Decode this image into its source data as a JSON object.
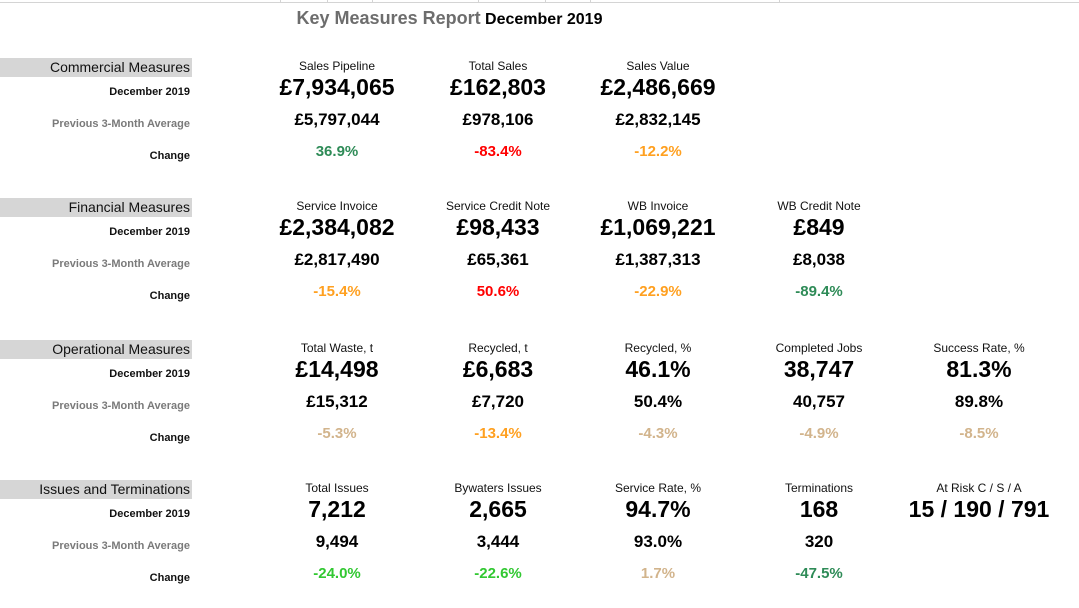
{
  "report": {
    "title": "Key Measures Report",
    "period": "December 2019"
  },
  "row_labels": {
    "current": "December 2019",
    "previous": "Previous 3-Month Average",
    "change": "Change"
  },
  "colors": {
    "header_band": "#d6d6d6",
    "dark_green": "#2e8b57",
    "bright_green": "#32c832",
    "red": "#ff0000",
    "orange": "#ffa020",
    "tan": "#d2b48c"
  },
  "sections": [
    {
      "name": "Commercial Measures",
      "measures": [
        {
          "label": "Sales Pipeline",
          "current": "£7,934,065",
          "previous": "£5,797,044",
          "change": "36.9%",
          "change_color": "#2e8b57"
        },
        {
          "label": "Total Sales",
          "current": "£162,803",
          "previous": "£978,106",
          "change": "-83.4%",
          "change_color": "#ff0000"
        },
        {
          "label": "Sales Value",
          "current": "£2,486,669",
          "previous": "£2,832,145",
          "change": "-12.2%",
          "change_color": "#ffa020"
        }
      ]
    },
    {
      "name": "Financial Measures",
      "measures": [
        {
          "label": "Service Invoice",
          "current": "£2,384,082",
          "previous": "£2,817,490",
          "change": "-15.4%",
          "change_color": "#ffa020"
        },
        {
          "label": "Service Credit Note",
          "current": "£98,433",
          "previous": "£65,361",
          "change": "50.6%",
          "change_color": "#ff0000"
        },
        {
          "label": "WB Invoice",
          "current": "£1,069,221",
          "previous": "£1,387,313",
          "change": "-22.9%",
          "change_color": "#ffa020"
        },
        {
          "label": "WB Credit Note",
          "current": "£849",
          "previous": "£8,038",
          "change": "-89.4%",
          "change_color": "#2e8b57"
        }
      ]
    },
    {
      "name": "Operational Measures",
      "measures": [
        {
          "label": "Total Waste, t",
          "current": "£14,498",
          "previous": "£15,312",
          "change": "-5.3%",
          "change_color": "#d2b48c"
        },
        {
          "label": "Recycled, t",
          "current": "£6,683",
          "previous": "£7,720",
          "change": "-13.4%",
          "change_color": "#ffa020"
        },
        {
          "label": "Recycled, %",
          "current": "46.1%",
          "previous": "50.4%",
          "change": "-4.3%",
          "change_color": "#d2b48c"
        },
        {
          "label": "Completed Jobs",
          "current": "38,747",
          "previous": "40,757",
          "change": "-4.9%",
          "change_color": "#d2b48c"
        },
        {
          "label": "Success Rate, %",
          "current": "81.3%",
          "previous": "89.8%",
          "change": "-8.5%",
          "change_color": "#d2b48c"
        }
      ]
    },
    {
      "name": "Issues and Terminations",
      "measures": [
        {
          "label": "Total Issues",
          "current": "7,212",
          "previous": "9,494",
          "change": "-24.0%",
          "change_color": "#32c832"
        },
        {
          "label": "Bywaters Issues",
          "current": "2,665",
          "previous": "3,444",
          "change": "-22.6%",
          "change_color": "#32c832"
        },
        {
          "label": "Service Rate, %",
          "current": "94.7%",
          "previous": "93.0%",
          "change": "1.7%",
          "change_color": "#d2b48c"
        },
        {
          "label": "Terminations",
          "current": "168",
          "previous": "320",
          "change": "-47.5%",
          "change_color": "#2e8b57"
        },
        {
          "label": "At Risk C / S / A",
          "current": "15 / 190 / 791",
          "previous": "",
          "change": "",
          "change_color": "#000000"
        }
      ]
    }
  ]
}
